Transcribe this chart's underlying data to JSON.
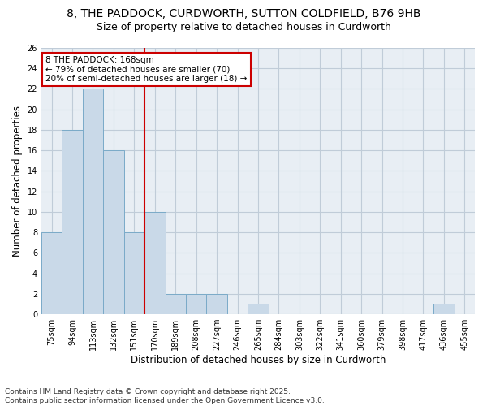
{
  "title1": "8, THE PADDOCK, CURDWORTH, SUTTON COLDFIELD, B76 9HB",
  "title2": "Size of property relative to detached houses in Curdworth",
  "xlabel": "Distribution of detached houses by size in Curdworth",
  "ylabel": "Number of detached properties",
  "categories": [
    "75sqm",
    "94sqm",
    "113sqm",
    "132sqm",
    "151sqm",
    "170sqm",
    "189sqm",
    "208sqm",
    "227sqm",
    "246sqm",
    "265sqm",
    "284sqm",
    "303sqm",
    "322sqm",
    "341sqm",
    "360sqm",
    "379sqm",
    "398sqm",
    "417sqm",
    "436sqm",
    "455sqm"
  ],
  "values": [
    8,
    18,
    22,
    16,
    8,
    10,
    2,
    2,
    2,
    0,
    1,
    0,
    0,
    0,
    0,
    0,
    0,
    0,
    0,
    1,
    0
  ],
  "bar_color": "#c9d9e8",
  "bar_edge_color": "#7aaac8",
  "vline_index": 5,
  "vline_color": "#cc0000",
  "annotation_line1": "8 THE PADDOCK: 168sqm",
  "annotation_line2": "← 79% of detached houses are smaller (70)",
  "annotation_line3": "20% of semi-detached houses are larger (18) →",
  "annotation_box_color": "#cc0000",
  "ylim": [
    0,
    26
  ],
  "yticks": [
    0,
    2,
    4,
    6,
    8,
    10,
    12,
    14,
    16,
    18,
    20,
    22,
    24,
    26
  ],
  "grid_color": "#c0ccd8",
  "background_color": "#e8eef4",
  "footer1": "Contains HM Land Registry data © Crown copyright and database right 2025.",
  "footer2": "Contains public sector information licensed under the Open Government Licence v3.0.",
  "title_fontsize": 10,
  "subtitle_fontsize": 9,
  "tick_fontsize": 7,
  "label_fontsize": 8.5,
  "footer_fontsize": 6.5
}
